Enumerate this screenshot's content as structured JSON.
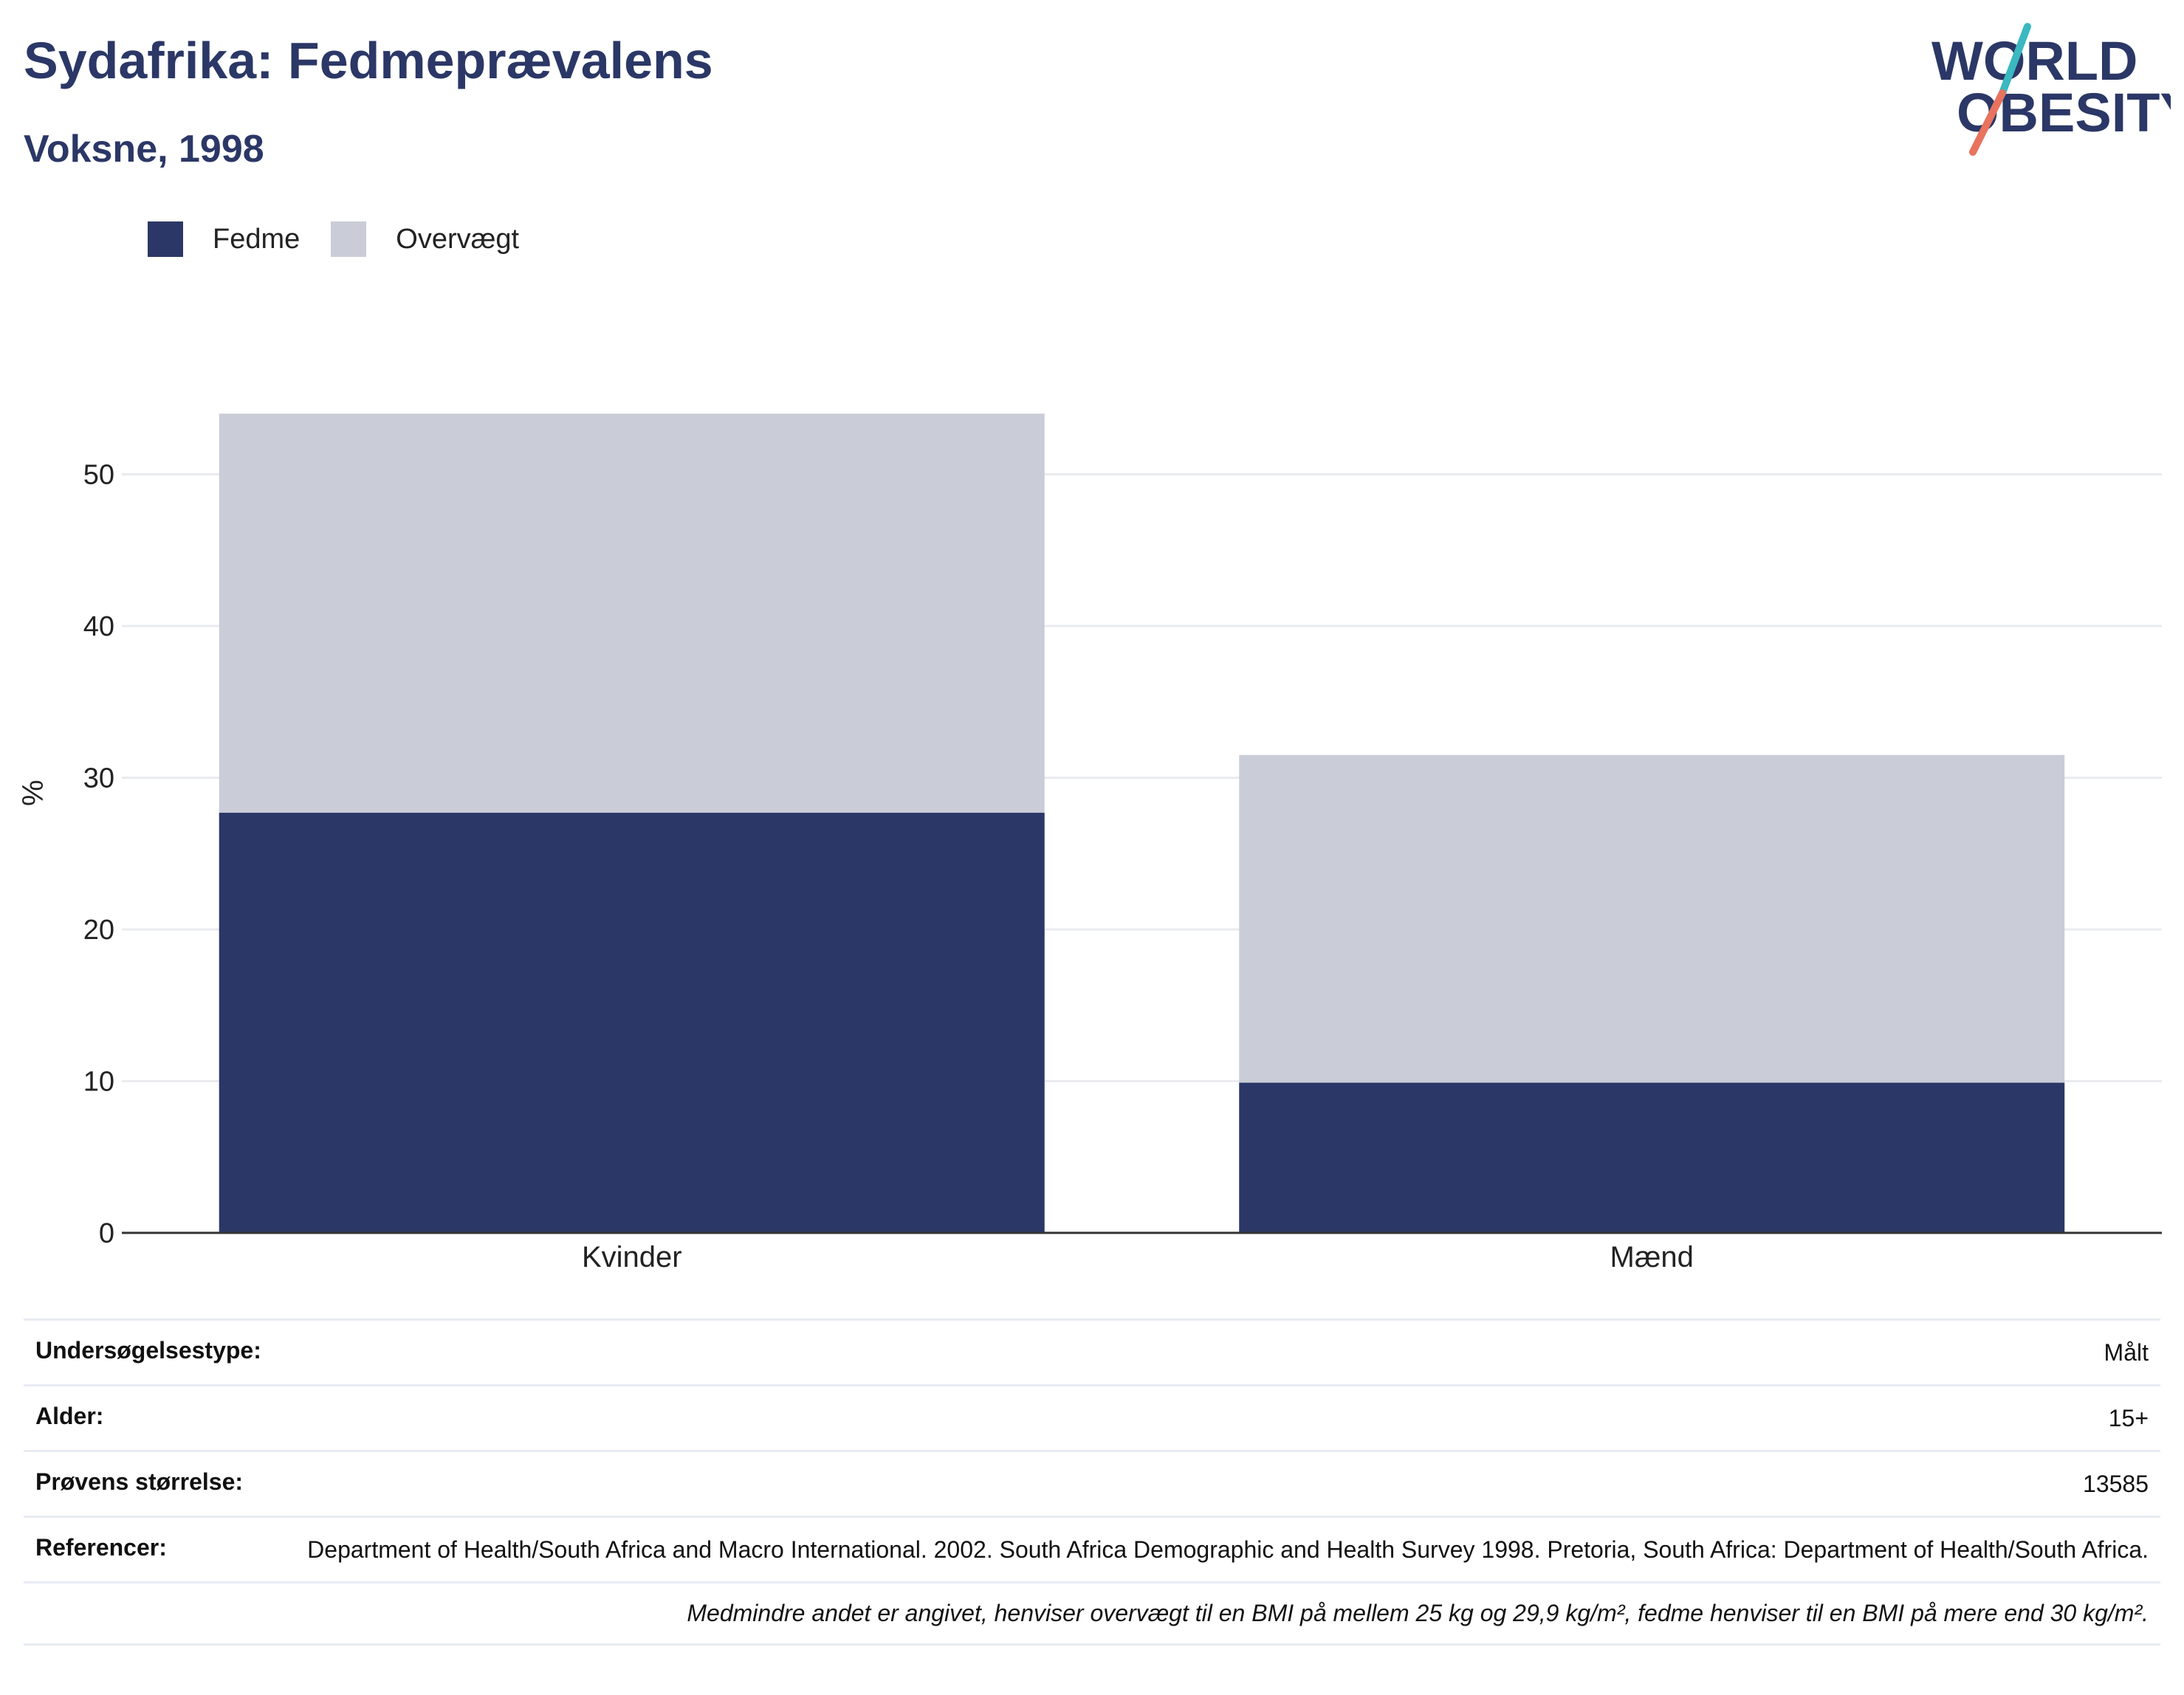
{
  "header": {
    "title": "Sydafrika: Fedmeprævalens",
    "subtitle": "Voksne, 1998"
  },
  "logo": {
    "line1": "WORLD",
    "line2": "OBESITY",
    "colors": {
      "text": "#2b3766",
      "slash_teal": "#3bb8c0",
      "slash_coral": "#e8735f"
    }
  },
  "chart_data": {
    "type": "bar",
    "stacked": true,
    "categories": [
      "Kvinder",
      "Mænd"
    ],
    "series": [
      {
        "name": "Fedme",
        "values": [
          27.7,
          9.9
        ],
        "color": "#2b3766"
      },
      {
        "name": "Overvægt",
        "values": [
          26.3,
          21.6
        ],
        "color": "#cacdd8"
      }
    ],
    "title": "Sydafrika: Fedmeprævalens",
    "subtitle": "Voksne, 1998",
    "xlabel": "",
    "ylabel": "%",
    "ylim": [
      0,
      58
    ],
    "yticks": [
      0,
      10,
      20,
      30,
      40,
      50
    ],
    "grid": true,
    "legend_position": "top-left"
  },
  "info": {
    "rows": [
      {
        "key": "Undersøgelsestype:",
        "value": "Målt"
      },
      {
        "key": "Alder:",
        "value": "15+"
      },
      {
        "key": "Prøvens størrelse:",
        "value": "13585"
      },
      {
        "key": "Referencer:",
        "value": "Department of Health/South Africa and Macro International. 2002. South Africa Demographic and Health Survey 1998. Pretoria, South Africa: Department of Health/South Africa."
      }
    ],
    "note": "Medmindre andet er angivet, henviser overvægt til en BMI på mellem 25 kg og 29,9 kg/m², fedme henviser til en BMI på mere end 30 kg/m²."
  }
}
